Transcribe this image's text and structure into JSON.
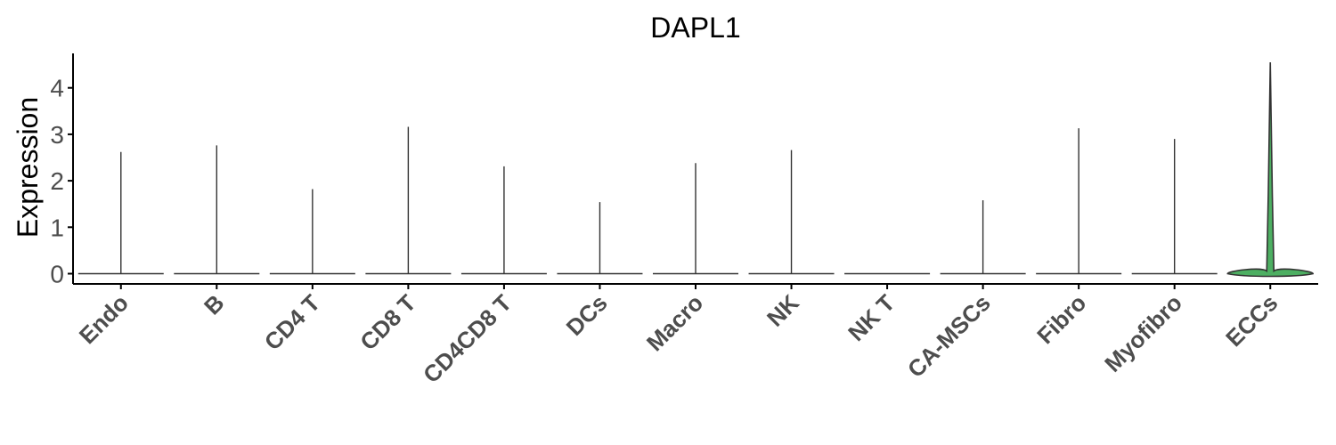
{
  "chart_data": {
    "type": "violin",
    "title": "DAPL1",
    "xlabel": "",
    "ylabel": "Expression",
    "ylim": [
      -0.2,
      4.8
    ],
    "yticks": [
      0,
      1,
      2,
      3,
      4
    ],
    "grid": false,
    "legend": "none",
    "categories": [
      "Endo",
      "B",
      "CD4 T",
      "CD8 T",
      "CD4CD8 T",
      "DCs",
      "Macro",
      "NK",
      "NK T",
      "CA-MSCs",
      "Fibro",
      "Myofibro",
      "ECCs"
    ],
    "series": [
      {
        "max_expression": [
          2.62,
          2.76,
          1.82,
          3.16,
          2.31,
          1.54,
          2.38,
          2.66,
          0.0,
          1.58,
          3.13,
          2.9,
          4.55
        ],
        "fill_colors": [
          "#d9d9d9",
          "#d9d9d9",
          "#d9d9d9",
          "#d9d9d9",
          "#d9d9d9",
          "#d9d9d9",
          "#d9d9d9",
          "#d9d9d9",
          "#d9d9d9",
          "#d9d9d9",
          "#d9d9d9",
          "#d9d9d9",
          "#4daf62"
        ]
      }
    ],
    "highlight_category": "ECCs",
    "highlight_color": "#4daf62"
  }
}
